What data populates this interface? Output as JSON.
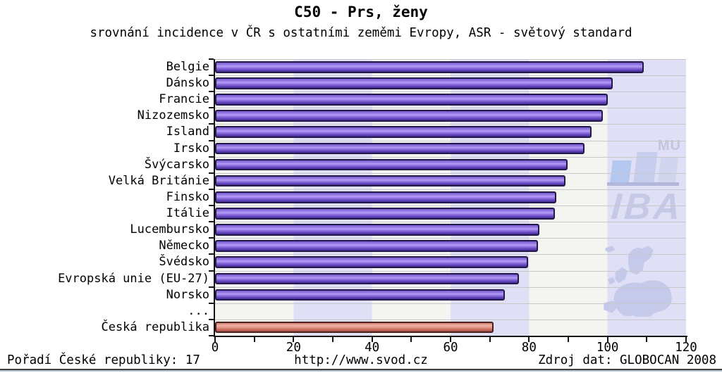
{
  "header": {
    "title": "C50 - Prs, ženy",
    "subtitle": "srovnání incidence v ČR s ostatními zeměmi Evropy, ASR - světový standard"
  },
  "chart_data": {
    "type": "bar",
    "orientation": "horizontal",
    "title": "C50 - Prs, ženy",
    "subtitle": "srovnání incidence v ČR s ostatními zeměmi Evropy, ASR - světový standard",
    "categories": [
      "Belgie",
      "Dánsko",
      "Francie",
      "Nizozemsko",
      "Island",
      "Irsko",
      "Švýcarsko",
      "Velká Británie",
      "Finsko",
      "Itálie",
      "Lucembursko",
      "Německo",
      "Švédsko",
      "Evropská unie (EU-27)",
      "Norsko",
      "...",
      "Česká republika"
    ],
    "values": [
      109.3,
      101.4,
      100.0,
      98.8,
      95.9,
      94.1,
      89.8,
      89.3,
      86.9,
      86.6,
      82.7,
      82.2,
      79.7,
      77.5,
      73.8,
      null,
      71.0
    ],
    "highlight_category": "Česká republika",
    "xlim": [
      0,
      120
    ],
    "xticks_major": [
      0,
      20,
      40,
      60,
      80,
      100,
      120
    ],
    "xtick_minor_step": 10,
    "bar_color": "#7a5ccd",
    "highlight_color": "#e0837a",
    "band_colors": [
      "#f4f4f1",
      "#dfe0f6"
    ],
    "grid": true,
    "legend": false
  },
  "watermark": {
    "mu_label": "MU",
    "iba_label": "IBA"
  },
  "footer": {
    "left": "Pořadí České republiky: 17",
    "center": "http://www.svod.cz",
    "right": "Zdroj dat: GLOBOCAN 2008"
  }
}
